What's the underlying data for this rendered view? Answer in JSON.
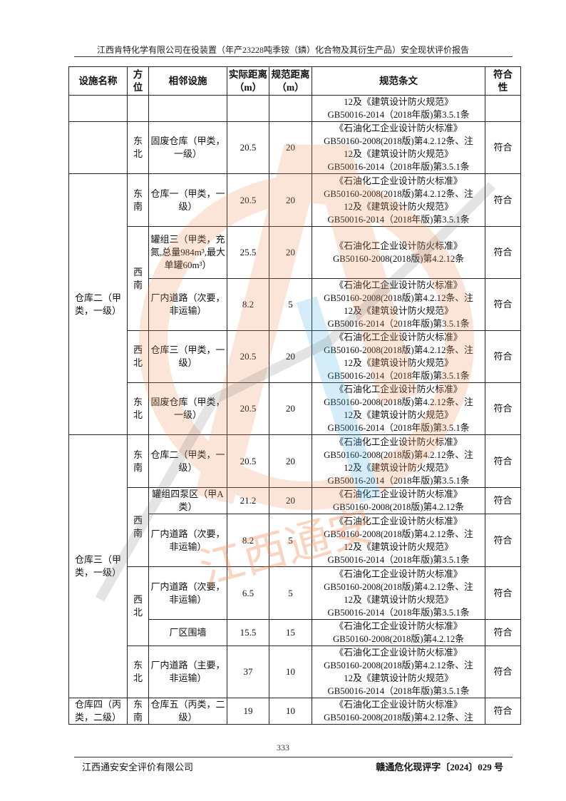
{
  "header": {
    "title": "江西肯特化学有限公司在役装置（年产23228吨季铵（鏻）化合物及其衍生产品）安全现状评价报告"
  },
  "table": {
    "columns": [
      "设施名称",
      "方位",
      "相邻设施",
      "实际距离（m）",
      "规范距离（m）",
      "规范条文",
      "符合性"
    ],
    "rows": [
      {
        "facility": null,
        "direction": {
          "text": "",
          "rowspan": 1
        },
        "adjacent": "",
        "actual": "",
        "standard": "",
        "clause": [
          "12及《建筑设计防火规范》",
          "GB50016-2014（2018年版)第3.5.1条"
        ],
        "conform": "",
        "h": 37
      },
      {
        "facility": {
          "text": "",
          "rowspan": 1
        },
        "direction": {
          "text": "东北",
          "rowspan": 1
        },
        "adjacent": "固废仓库（甲类，一级）",
        "actual": "20.5",
        "standard": "20",
        "clause": [
          "《石油化工企业设计防火标准》",
          "GB50160-2008(2018版)第4.2.12条、注",
          "12及《建筑设计防火规范》",
          "GB50016-2014（2018年版)第3.5.1条"
        ],
        "conform": "符合",
        "h": 72
      },
      {
        "facility": {
          "text": "仓库二（甲类，一级）",
          "rowspan": 5
        },
        "direction": {
          "text": "东南",
          "rowspan": 1
        },
        "adjacent": "仓库一（甲类，一级）",
        "actual": "20.5",
        "standard": "20",
        "clause": [
          "《石油化工企业设计防火标准》",
          "GB50160-2008(2018版)第4.2.12条、注",
          "12及《建筑设计防火规范》",
          "GB50016-2014（2018年版)第3.5.1条"
        ],
        "conform": "符合",
        "h": 74
      },
      {
        "facility": null,
        "direction": {
          "text": "西南",
          "rowspan": 2
        },
        "adjacent": "罐组三（甲类，充氮,总量984m³,最大单罐60m³）",
        "actual": "25.5",
        "standard": "20",
        "clause": [
          "《石油化工企业设计防火标准》",
          "GB50160-2008(2018版)第4.2.12条"
        ],
        "conform": "符合",
        "h": 73
      },
      {
        "facility": null,
        "direction": null,
        "adjacent": "厂内道路（次要，非运输）",
        "actual": "8.2",
        "standard": "5",
        "clause": [
          "《石油化工企业设计防火标准》",
          "GB50160-2008(2018版)第4.2.12条、注",
          "12及《建筑设计防火规范》",
          "GB50016-2014（2018年版)第3.5.1条"
        ],
        "conform": "符合",
        "h": 73
      },
      {
        "facility": null,
        "direction": {
          "text": "西北",
          "rowspan": 1
        },
        "adjacent": "仓库三（甲类，一级）",
        "actual": "20.5",
        "standard": "20",
        "clause": [
          "《石油化工企业设计防火标准》",
          "GB50160-2008(2018版)第4.2.12条、注",
          "12及《建筑设计防火规范》",
          "GB50016-2014（2018年版)第3.5.1条"
        ],
        "conform": "符合",
        "h": 73
      },
      {
        "facility": null,
        "direction": {
          "text": "东北",
          "rowspan": 1
        },
        "adjacent": "固废仓库（甲类，一级）",
        "actual": "20.5",
        "standard": "20",
        "clause": [
          "《石油化工企业设计防火标准》",
          "GB50160-2008(2018版)第4.2.12条、注",
          "12及《建筑设计防火规范》",
          "GB50016-2014（2018年版)第3.5.1条"
        ],
        "conform": "符合",
        "h": 73
      },
      {
        "facility": {
          "text": "仓库三（甲类，一级）",
          "rowspan": 6
        },
        "direction": {
          "text": "东南",
          "rowspan": 1
        },
        "adjacent": "仓库二（甲类，一级）",
        "actual": "20.5",
        "standard": "20",
        "clause": [
          "《石油化工企业设计防火标准》",
          "GB50160-2008(2018版)第4.2.12条、注",
          "12及《建筑设计防火规范》",
          "GB50016-2014（2018年版)第3.5.1条"
        ],
        "conform": "符合",
        "h": 74
      },
      {
        "facility": null,
        "direction": {
          "text": "西南",
          "rowspan": 2
        },
        "adjacent": "罐组四泵区（甲A类）",
        "actual": "21.2",
        "standard": "20",
        "clause": [
          "《石油化工企业设计防火标准》",
          "GB50160-2008(2018版)第4.2.12条"
        ],
        "conform": "符合",
        "h": 36
      },
      {
        "facility": null,
        "direction": null,
        "adjacent": "厂内道路（次要，非运输）",
        "actual": "8.2",
        "standard": "5",
        "clause": [
          "《石油化工企业设计防火标准》",
          "GB50160-2008(2018版)第4.2.12条、注",
          "12及《建筑设计防火规范》",
          "GB50016-2014（2018年版)第3.5.1条"
        ],
        "conform": "符合",
        "h": 74
      },
      {
        "facility": null,
        "direction": {
          "text": "西北",
          "rowspan": 2
        },
        "adjacent": "厂内道路（次要，非运输）",
        "actual": "6.5",
        "standard": "5",
        "clause": [
          "《石油化工企业设计防火标准》",
          "GB50160-2008(2018版)第4.2.12条、注",
          "12及《建筑设计防火规范》",
          "GB50016-2014（2018年版)第3.5.1条"
        ],
        "conform": "符合",
        "h": 74
      },
      {
        "facility": null,
        "direction": null,
        "adjacent": "厂区围墙",
        "actual": "15.5",
        "standard": "15",
        "clause": [
          "《石油化工企业设计防火标准》",
          "GB50160-2008(2018版)第4.2.12条"
        ],
        "conform": "符合",
        "h": 37
      },
      {
        "facility": null,
        "direction": {
          "text": "东北",
          "rowspan": 1
        },
        "adjacent": "厂内道路（主要，非运输）",
        "actual": "37",
        "standard": "10",
        "clause": [
          "《石油化工企业设计防火标准》",
          "GB50160-2008(2018版)第4.2.12条、注",
          "12及《建筑设计防火规范》",
          "GB50016-2014（2018年版)第3.5.1条"
        ],
        "conform": "符合",
        "h": 73
      },
      {
        "facility": {
          "text": "仓库四（丙类，二级）",
          "rowspan": 1
        },
        "direction": {
          "text": "东南",
          "rowspan": 1
        },
        "adjacent": "仓库五（丙类，二级）",
        "actual": "19",
        "standard": "10",
        "clause": [
          "《石油化工企业设计防火标准》",
          "GB50160-2008(2018版)第4.2.12条、注"
        ],
        "conform": "符合",
        "h": 37
      }
    ]
  },
  "watermark": {
    "text": "江西通安",
    "accent": "#f08a50"
  },
  "footer": {
    "page_number": "333",
    "company": "江西通安安全评价有限公司",
    "doc_number": "赣通危化现评字〔2024〕029 号"
  }
}
